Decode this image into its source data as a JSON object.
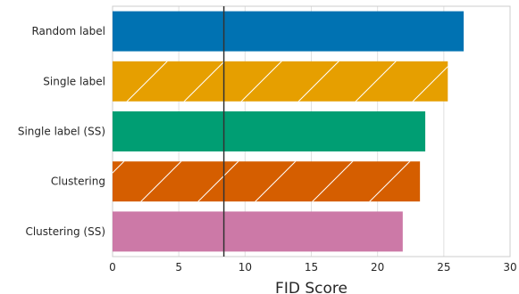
{
  "chart_data": {
    "type": "bar",
    "orientation": "horizontal",
    "categories": [
      "Random label",
      "Single label",
      "Single label (SS)",
      "Clustering",
      "Clustering (SS)"
    ],
    "values": [
      26.5,
      25.3,
      23.6,
      23.2,
      21.9
    ],
    "colors": [
      "#0072b2",
      "#e69f00",
      "#009e73",
      "#d55e00",
      "#cc79a7"
    ],
    "hatched": [
      false,
      true,
      false,
      true,
      false
    ],
    "reference_line": 8.4,
    "xlabel": "FID Score",
    "xlim": [
      0,
      30
    ],
    "xticks": [
      "0",
      "5",
      "10",
      "15",
      "20",
      "25",
      "30"
    ],
    "grid": "x"
  }
}
